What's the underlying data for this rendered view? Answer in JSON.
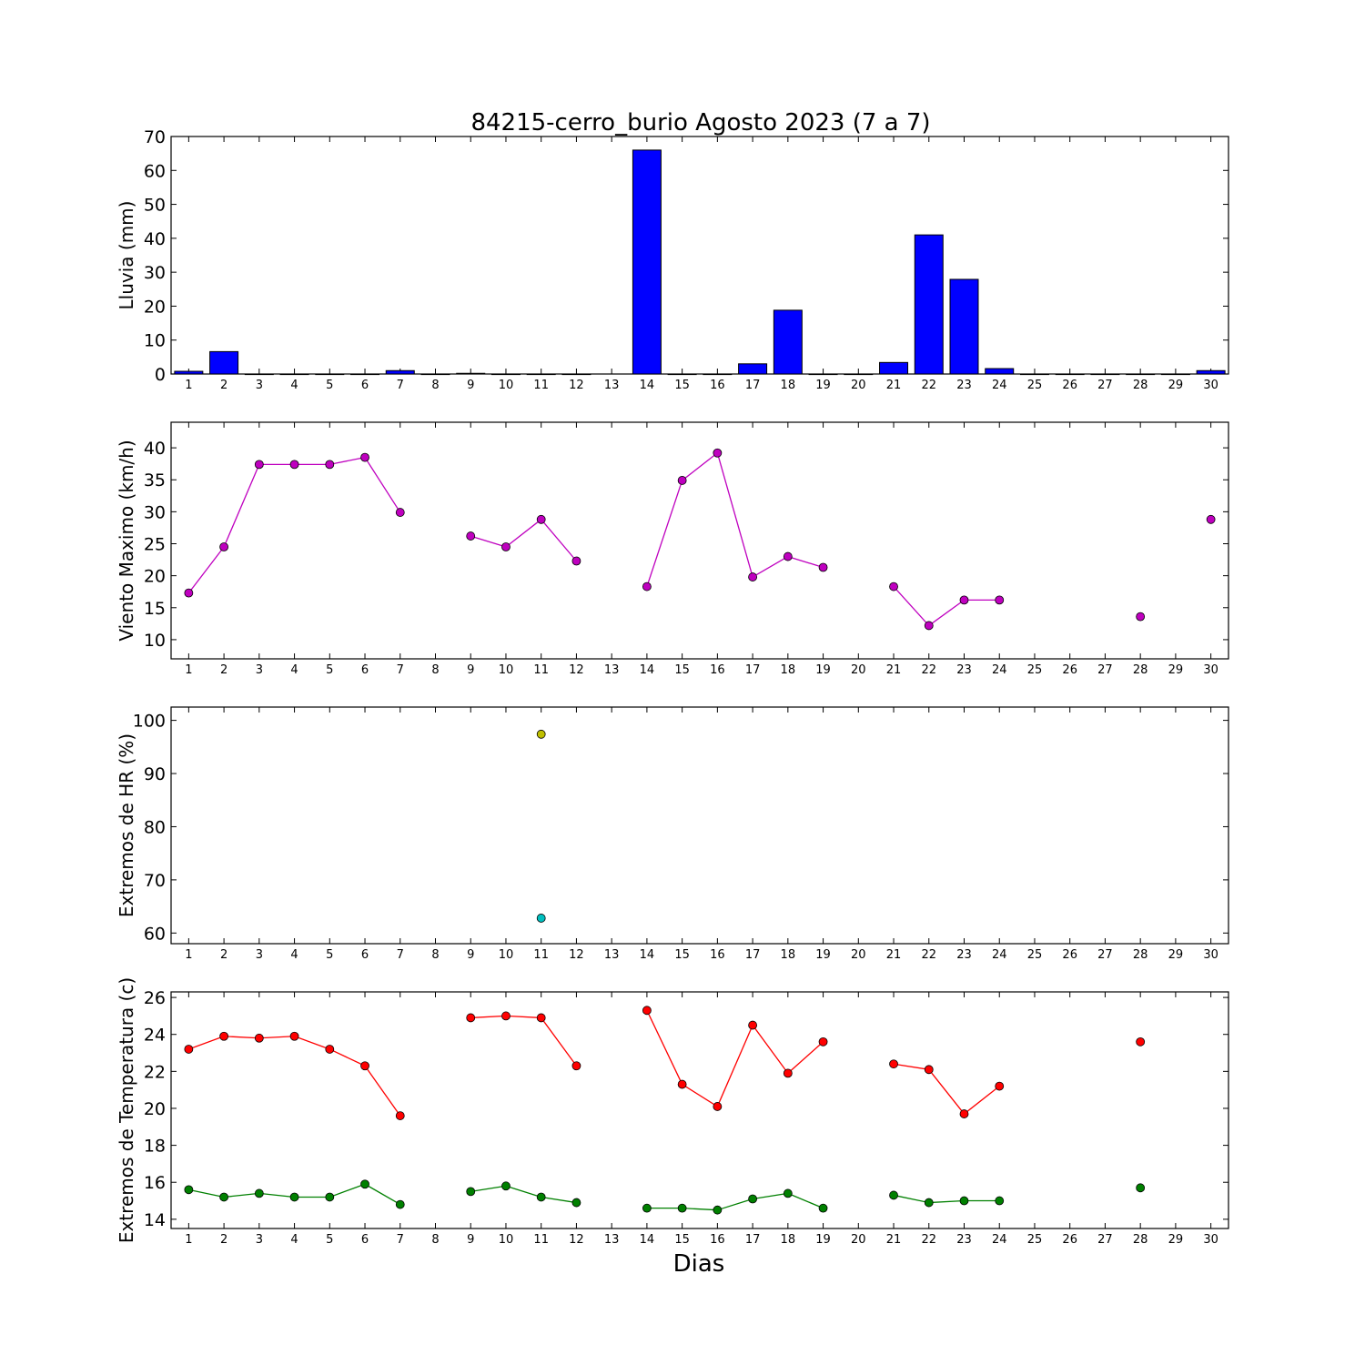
{
  "figure": {
    "title": "84215-cerro_burio Agosto 2023  (7 a 7)",
    "xlabel": "Dias"
  },
  "chart_data": [
    {
      "type": "bar",
      "ylabel": "Lluvia (mm)",
      "ylim": [
        0,
        70
      ],
      "yticks": [
        0,
        10,
        20,
        30,
        40,
        50,
        60,
        70
      ],
      "xlim": [
        0.5,
        30.5
      ],
      "x_ticks": [
        1,
        2,
        3,
        4,
        5,
        6,
        7,
        8,
        9,
        10,
        11,
        12,
        13,
        14,
        15,
        16,
        17,
        18,
        19,
        20,
        21,
        22,
        23,
        24,
        25,
        26,
        27,
        28,
        29,
        30
      ],
      "categories": [
        1,
        2,
        3,
        4,
        5,
        6,
        7,
        8,
        9,
        10,
        11,
        12,
        13,
        14,
        15,
        16,
        17,
        18,
        19,
        20,
        21,
        22,
        23,
        24,
        25,
        26,
        27,
        28,
        29,
        30
      ],
      "values": [
        0.8,
        6.6,
        0,
        0,
        0,
        0,
        1.0,
        0,
        0.2,
        0,
        0,
        0,
        null,
        66.0,
        0,
        0,
        3.0,
        18.8,
        0,
        0,
        3.4,
        41.0,
        27.9,
        1.6,
        0,
        0,
        0,
        0,
        0,
        1.0
      ],
      "color": "#0000ff",
      "grid": false
    },
    {
      "type": "line",
      "ylabel": "Viento Maximo (km/h)",
      "ylim": [
        7,
        44
      ],
      "yticks": [
        10,
        15,
        20,
        25,
        30,
        35,
        40
      ],
      "xlim": [
        0.5,
        30.5
      ],
      "x_ticks": [
        1,
        2,
        3,
        4,
        5,
        6,
        7,
        8,
        9,
        10,
        11,
        12,
        13,
        14,
        15,
        16,
        17,
        18,
        19,
        20,
        21,
        22,
        23,
        24,
        25,
        26,
        27,
        28,
        29,
        30
      ],
      "x": [
        1,
        2,
        3,
        4,
        5,
        6,
        7,
        8,
        9,
        10,
        11,
        12,
        13,
        14,
        15,
        16,
        17,
        18,
        19,
        20,
        21,
        22,
        23,
        24,
        25,
        26,
        27,
        28,
        29,
        30
      ],
      "series": [
        {
          "values": [
            17.3,
            24.5,
            37.4,
            37.4,
            37.4,
            38.5,
            29.9,
            null,
            26.2,
            24.5,
            28.8,
            22.3,
            null,
            18.3,
            34.9,
            39.2,
            19.8,
            23.0,
            21.3,
            null,
            18.3,
            12.2,
            16.2,
            16.2,
            null,
            null,
            null,
            13.6,
            null,
            28.8
          ],
          "color": "#bf00bf"
        }
      ],
      "grid": false
    },
    {
      "type": "scatter",
      "ylabel": "Extremos de HR (%)",
      "ylim": [
        58,
        102.5
      ],
      "yticks": [
        60,
        70,
        80,
        90,
        100
      ],
      "xlim": [
        0.5,
        30.5
      ],
      "x_ticks": [
        1,
        2,
        3,
        4,
        5,
        6,
        7,
        8,
        9,
        10,
        11,
        12,
        13,
        14,
        15,
        16,
        17,
        18,
        19,
        20,
        21,
        22,
        23,
        24,
        25,
        26,
        27,
        28,
        29,
        30
      ],
      "x": [
        1,
        2,
        3,
        4,
        5,
        6,
        7,
        8,
        9,
        10,
        11,
        12,
        13,
        14,
        15,
        16,
        17,
        18,
        19,
        20,
        21,
        22,
        23,
        24,
        25,
        26,
        27,
        28,
        29,
        30
      ],
      "series": [
        {
          "values": [
            null,
            null,
            null,
            null,
            null,
            null,
            null,
            null,
            null,
            null,
            97.4,
            null,
            null,
            null,
            null,
            null,
            null,
            null,
            null,
            null,
            null,
            null,
            null,
            null,
            null,
            null,
            null,
            null,
            null,
            null
          ],
          "color": "#bfbf00"
        },
        {
          "values": [
            null,
            null,
            null,
            null,
            null,
            null,
            null,
            null,
            null,
            null,
            62.8,
            null,
            null,
            null,
            null,
            null,
            null,
            null,
            null,
            null,
            null,
            null,
            null,
            null,
            null,
            null,
            null,
            null,
            null,
            null
          ],
          "color": "#00bfbf"
        }
      ],
      "grid": false
    },
    {
      "type": "line",
      "ylabel": "Extremos de Temperatura (c)",
      "ylim": [
        13.5,
        26.3
      ],
      "yticks": [
        14,
        16,
        18,
        20,
        22,
        24,
        26
      ],
      "xlim": [
        0.5,
        30.5
      ],
      "x_ticks": [
        1,
        2,
        3,
        4,
        5,
        6,
        7,
        8,
        9,
        10,
        11,
        12,
        13,
        14,
        15,
        16,
        17,
        18,
        19,
        20,
        21,
        22,
        23,
        24,
        25,
        26,
        27,
        28,
        29,
        30
      ],
      "x": [
        1,
        2,
        3,
        4,
        5,
        6,
        7,
        8,
        9,
        10,
        11,
        12,
        13,
        14,
        15,
        16,
        17,
        18,
        19,
        20,
        21,
        22,
        23,
        24,
        25,
        26,
        27,
        28,
        29,
        30
      ],
      "series": [
        {
          "values": [
            23.2,
            23.9,
            23.8,
            23.9,
            23.2,
            22.3,
            19.6,
            null,
            24.9,
            25.0,
            24.9,
            22.3,
            null,
            25.3,
            21.3,
            20.1,
            24.5,
            21.9,
            23.6,
            null,
            22.4,
            22.1,
            19.7,
            21.2,
            null,
            null,
            null,
            23.6,
            null,
            null
          ],
          "color": "#ff0000"
        },
        {
          "values": [
            15.6,
            15.2,
            15.4,
            15.2,
            15.2,
            15.9,
            14.8,
            null,
            15.5,
            15.8,
            15.2,
            14.9,
            null,
            14.6,
            14.6,
            14.5,
            15.1,
            15.4,
            14.6,
            null,
            15.3,
            14.9,
            15.0,
            15.0,
            null,
            null,
            null,
            15.7,
            null,
            null
          ],
          "color": "#008000"
        }
      ],
      "grid": false
    }
  ]
}
